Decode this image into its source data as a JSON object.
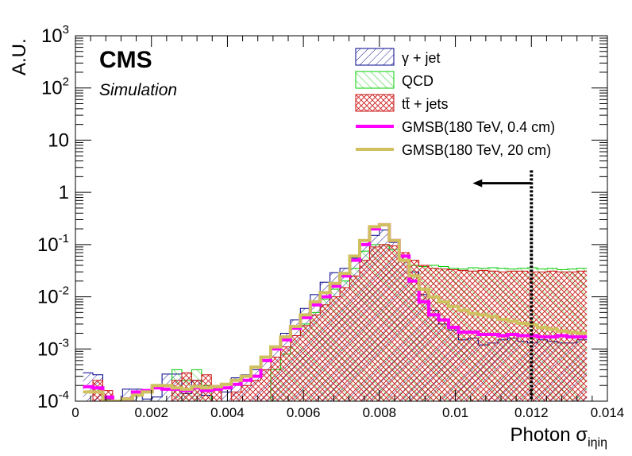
{
  "chart_data": {
    "type": "histogram",
    "xlabel": "Photon σ",
    "xlabel_sub": "iηiη",
    "ylabel": "A.U.",
    "xlim": [
      0,
      0.014
    ],
    "ylim": [
      0.0001,
      1000
    ],
    "yscale": "log",
    "xticks": [
      {
        "value": 0,
        "label": "0"
      },
      {
        "value": 0.002,
        "label": "0.002"
      },
      {
        "value": 0.004,
        "label": "0.004"
      },
      {
        "value": 0.006,
        "label": "0.006"
      },
      {
        "value": 0.008,
        "label": "0.008"
      },
      {
        "value": 0.01,
        "label": "0.01"
      },
      {
        "value": 0.012,
        "label": "0.012"
      },
      {
        "value": 0.014,
        "label": "0.014"
      }
    ],
    "yticks": [
      {
        "value": 0.0001,
        "base": "10",
        "exp": "-4",
        "label": ""
      },
      {
        "value": 0.001,
        "base": "10",
        "exp": "-3",
        "label": ""
      },
      {
        "value": 0.01,
        "base": "10",
        "exp": "-2",
        "label": ""
      },
      {
        "value": 0.1,
        "base": "10",
        "exp": "-1",
        "label": ""
      },
      {
        "value": 1,
        "base": "",
        "exp": "",
        "label": "1"
      },
      {
        "value": 10,
        "base": "",
        "exp": "",
        "label": "10"
      },
      {
        "value": 100,
        "base": "10",
        "exp": "2",
        "label": ""
      },
      {
        "value": 1000,
        "base": "10",
        "exp": "3",
        "label": ""
      }
    ],
    "cms_label": "CMS",
    "cms_sublabel": "Simulation",
    "bin_edges_start": 0.0002,
    "bin_width": 0.00026,
    "series": [
      {
        "name": "γ + jet",
        "kind": "hatch",
        "color": "#00008b",
        "pattern": "diag-right",
        "values": [
          0.00035,
          0.00032,
          0.00011,
          0.0001,
          0.00017,
          0.00017,
          0.00011,
          0.00012,
          0.00033,
          0.00033,
          0.00014,
          0.00025,
          0.00013,
          0.0001,
          0.00015,
          0.00028,
          0.00032,
          0.0004,
          0.0007,
          0.0011,
          0.002,
          0.0036,
          0.006,
          0.011,
          0.019,
          0.029,
          0.035,
          0.055,
          0.1,
          0.15,
          0.19,
          0.11,
          0.06,
          0.03,
          0.011,
          0.0055,
          0.003,
          0.0023,
          0.0015,
          0.0016,
          0.0012,
          0.0013,
          0.0015,
          0.0016,
          0.0014,
          0.0013,
          0.0015,
          0.0014,
          0.0013,
          0.0013,
          0.0015
        ]
      },
      {
        "name": "QCD",
        "kind": "hatch",
        "color": "#00cc00",
        "pattern": "diag-left",
        "values": [
          0.0001,
          0.0001,
          0.0001,
          0.0001,
          0.0001,
          0.0001,
          0.0001,
          0.0001,
          0.0001,
          0.0004,
          0.00025,
          0.0004,
          0.0002,
          0.0001,
          0.0001,
          0.0001,
          0.0001,
          0.0001,
          0.0001,
          0.0004,
          0.0008,
          0.0018,
          0.003,
          0.005,
          0.009,
          0.014,
          0.02,
          0.035,
          0.075,
          0.1,
          0.1,
          0.08,
          0.06,
          0.04,
          0.038,
          0.04,
          0.038,
          0.035,
          0.034,
          0.036,
          0.035,
          0.036,
          0.035,
          0.034,
          0.035,
          0.036,
          0.034,
          0.035,
          0.033,
          0.034,
          0.035
        ]
      },
      {
        "name": "tt̄ + jets",
        "kind": "hatch",
        "color": "#cc1111",
        "pattern": "cross",
        "values": [
          0.0001,
          0.00025,
          0.00016,
          0.0001,
          0.0001,
          0.0001,
          0.0001,
          0.0001,
          0.0001,
          0.00025,
          0.00035,
          0.00025,
          0.00032,
          0.0002,
          0.0001,
          0.00015,
          0.0002,
          0.00025,
          0.0004,
          0.0007,
          0.0011,
          0.0018,
          0.0028,
          0.0045,
          0.007,
          0.01,
          0.015,
          0.025,
          0.05,
          0.09,
          0.1,
          0.095,
          0.07,
          0.05,
          0.04,
          0.035,
          0.034,
          0.033,
          0.032,
          0.031,
          0.032,
          0.031,
          0.03,
          0.031,
          0.031,
          0.03,
          0.03,
          0.031,
          0.03,
          0.03,
          0.031
        ]
      },
      {
        "name": "GMSB(180 TeV, 0.4 cm)",
        "kind": "line",
        "color": "#ff00ff",
        "width": 4,
        "values": [
          0.00019,
          0.00018,
          0.00012,
          0.0001,
          0.00011,
          0.00015,
          0.00016,
          0.00018,
          0.00017,
          0.00017,
          0.00016,
          0.00018,
          0.00016,
          0.00017,
          0.00018,
          0.00021,
          0.00025,
          0.0003,
          0.0006,
          0.001,
          0.0015,
          0.0025,
          0.004,
          0.007,
          0.01,
          0.016,
          0.025,
          0.05,
          0.1,
          0.2,
          0.24,
          0.12,
          0.06,
          0.02,
          0.008,
          0.0045,
          0.0036,
          0.0026,
          0.0021,
          0.0021,
          0.0019,
          0.0019,
          0.0018,
          0.0019,
          0.0018,
          0.0018,
          0.0017,
          0.0017,
          0.0018,
          0.0017,
          0.0017
        ]
      },
      {
        "name": "GMSB(180 TeV, 20 cm)",
        "kind": "line",
        "color": "#cfc060",
        "width": 4,
        "values": [
          0.00015,
          0.00015,
          0.0001,
          0.0001,
          0.00011,
          0.00013,
          0.00015,
          0.0002,
          0.0002,
          0.00018,
          0.00017,
          0.00019,
          0.00018,
          0.00019,
          0.00021,
          0.00025,
          0.0003,
          0.00045,
          0.0007,
          0.0011,
          0.0017,
          0.0027,
          0.0045,
          0.008,
          0.012,
          0.018,
          0.028,
          0.06,
          0.12,
          0.22,
          0.24,
          0.12,
          0.05,
          0.025,
          0.014,
          0.01,
          0.008,
          0.0065,
          0.0055,
          0.0048,
          0.0045,
          0.0042,
          0.0037,
          0.0034,
          0.0031,
          0.0029,
          0.0026,
          0.0024,
          0.0022,
          0.0021,
          0.002
        ]
      }
    ],
    "cut": {
      "x": 0.012,
      "direction": "left",
      "y_top": 2
    }
  }
}
